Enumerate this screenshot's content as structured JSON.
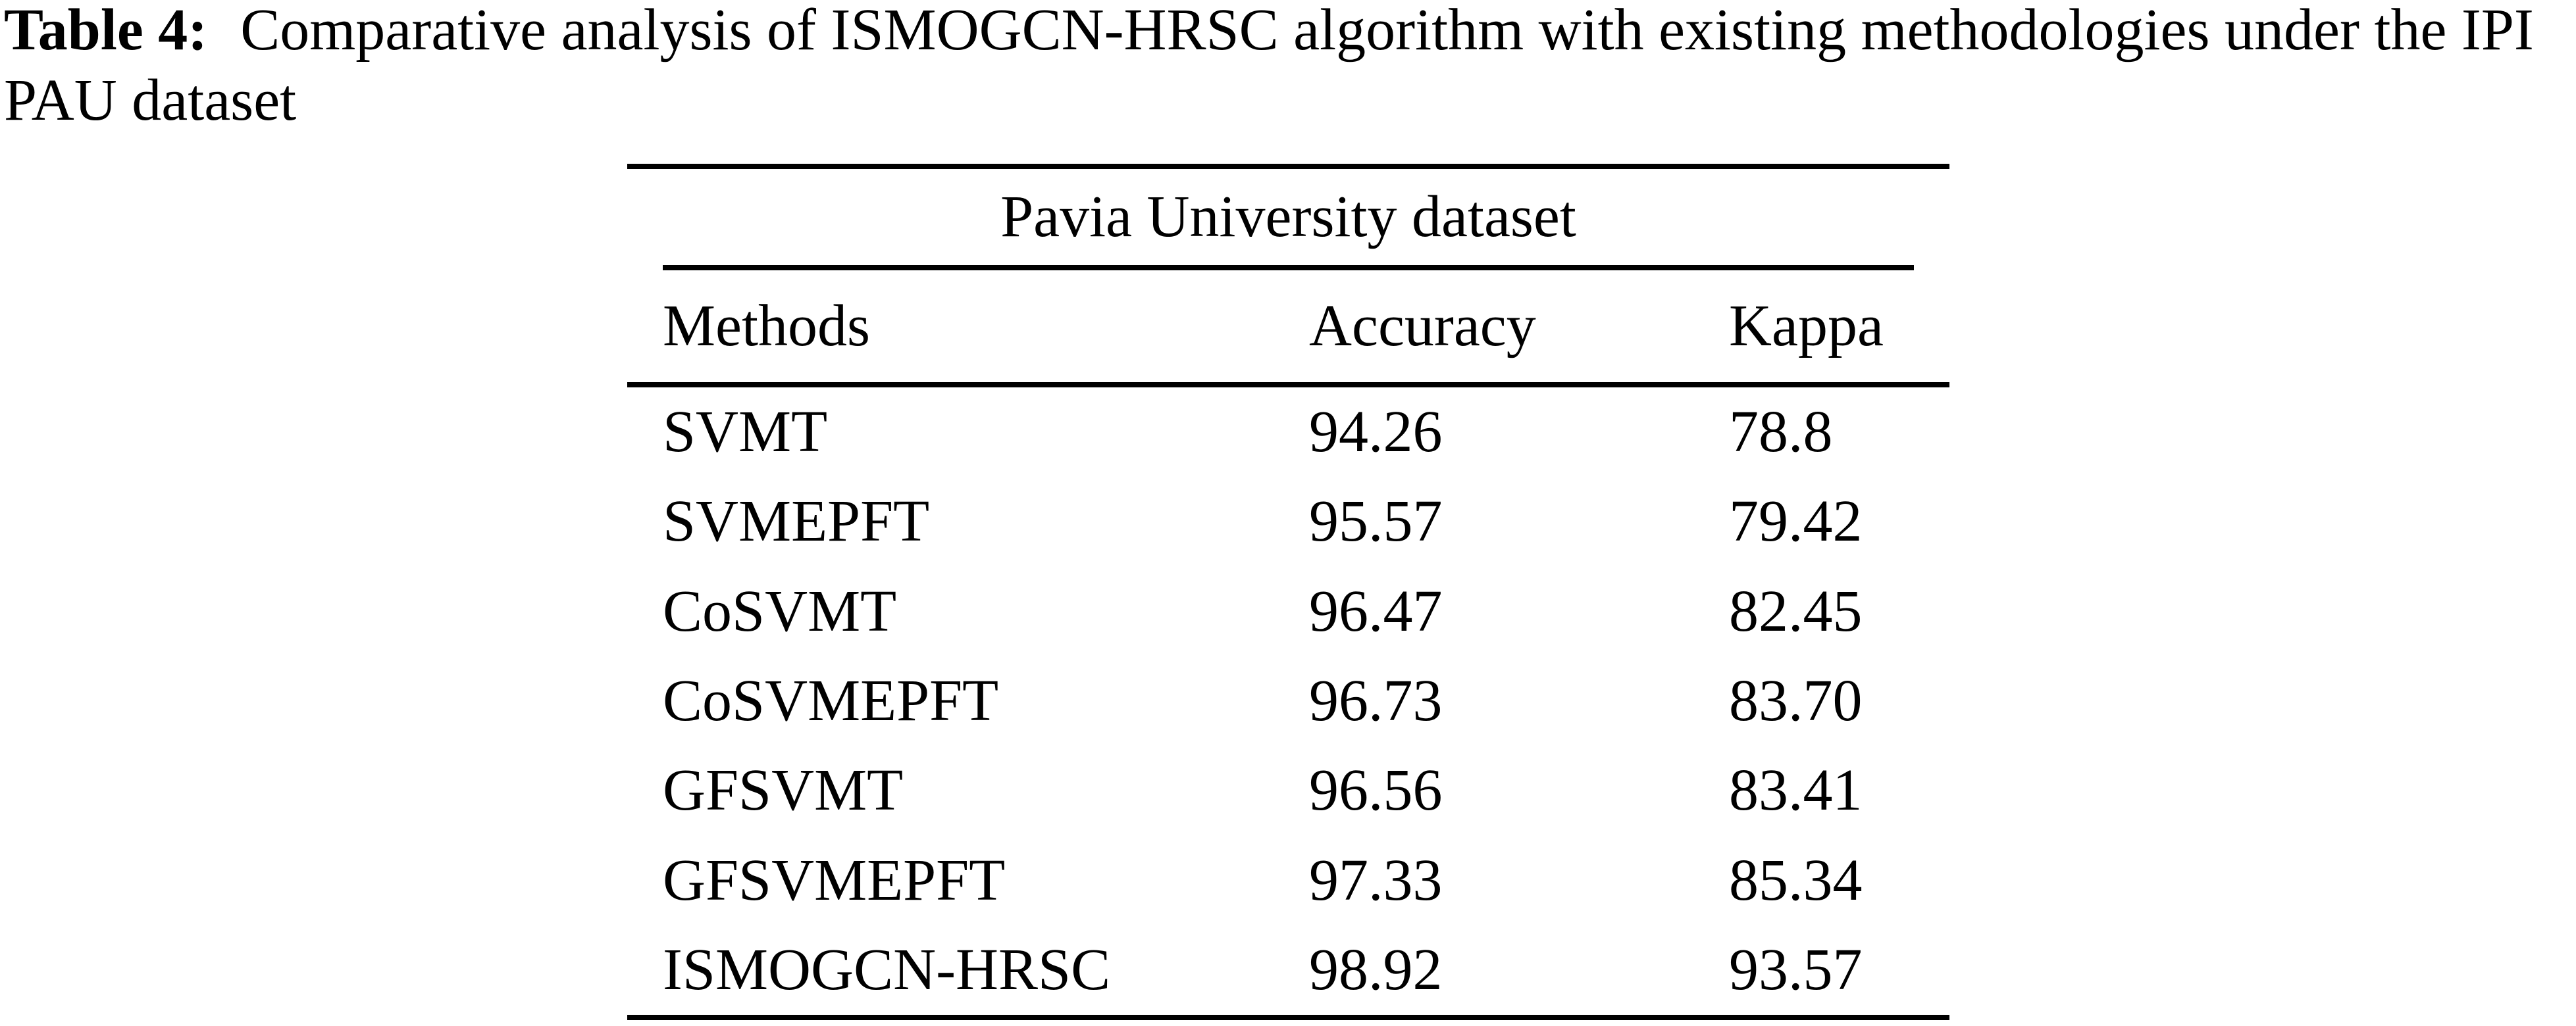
{
  "caption": {
    "label": "Table 4:",
    "line1": "Comparative analysis of ISMOGCN-HRSC algorithm with existing methodologies under the IPI",
    "line2": "PAU dataset"
  },
  "table": {
    "group_header": "Pavia University dataset",
    "columns": [
      "Methods",
      "Accuracy",
      "Kappa"
    ],
    "rows": [
      {
        "method": "SVMT",
        "accuracy": "94.26",
        "kappa": "78.8"
      },
      {
        "method": "SVMEPFT",
        "accuracy": "95.57",
        "kappa": "79.42"
      },
      {
        "method": "CoSVMT",
        "accuracy": "96.47",
        "kappa": "82.45"
      },
      {
        "method": "CoSVMEPFT",
        "accuracy": "96.73",
        "kappa": "83.70"
      },
      {
        "method": "GFSVMT",
        "accuracy": "96.56",
        "kappa": "83.41"
      },
      {
        "method": "GFSVMEPFT",
        "accuracy": "97.33",
        "kappa": "85.34"
      },
      {
        "method": "ISMOGCN-HRSC",
        "accuracy": "98.92",
        "kappa": "93.57"
      }
    ]
  },
  "colors": {
    "text": "#000000",
    "background": "#ffffff",
    "rule": "#000000"
  }
}
